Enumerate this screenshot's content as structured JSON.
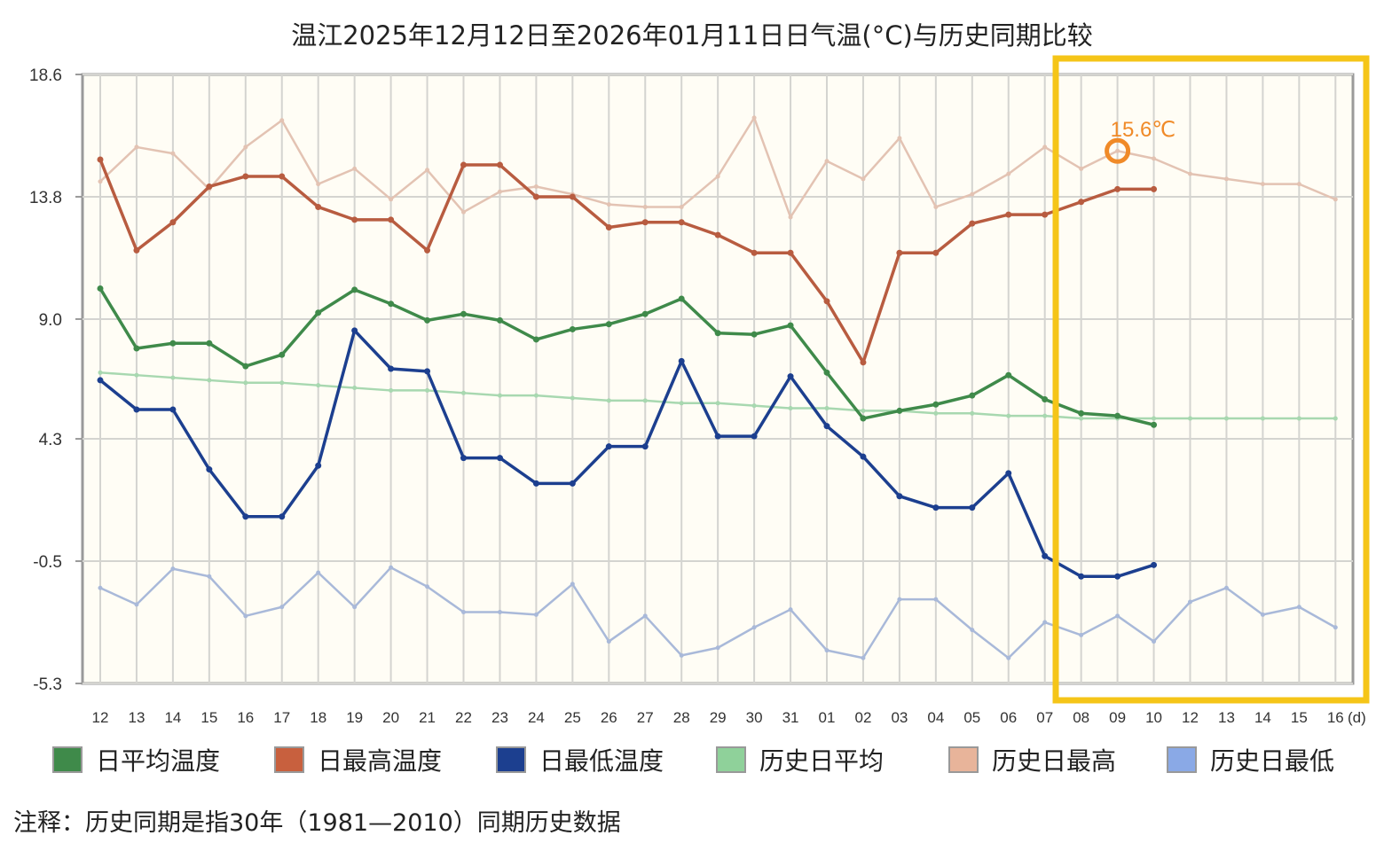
{
  "chart_data": {
    "type": "line",
    "title": "温江2025年12月12日至2026年01月11日日气温(°C)与历史同期比较",
    "xlabel": "(d)",
    "ylabel": "",
    "ylim": [
      -5.3,
      18.6
    ],
    "yticks": [
      "18.6",
      "13.8",
      "9.0",
      "4.3",
      "-0.5",
      "-5.3"
    ],
    "ytick_values": [
      18.6,
      13.8,
      9.0,
      4.3,
      -0.5,
      -5.3
    ],
    "grid": true,
    "categories": [
      "12",
      "13",
      "14",
      "15",
      "16",
      "17",
      "18",
      "19",
      "20",
      "21",
      "22",
      "23",
      "24",
      "25",
      "26",
      "27",
      "28",
      "29",
      "30",
      "31",
      "01",
      "02",
      "03",
      "04",
      "05",
      "06",
      "07",
      "08",
      "09",
      "10",
      "12",
      "13",
      "14",
      "15",
      "16"
    ],
    "series": [
      {
        "name": "日平均温度",
        "color": "#3f8a4a",
        "line_color": "#3f8a4a",
        "values": [
          10.2,
          7.85,
          8.05,
          8.05,
          7.15,
          7.6,
          9.25,
          10.15,
          9.6,
          8.95,
          9.2,
          8.95,
          8.2,
          8.6,
          8.8,
          9.2,
          9.8,
          8.45,
          8.4,
          8.75,
          6.9,
          5.1,
          5.4,
          5.65,
          6.0,
          6.8,
          5.85,
          5.3,
          5.2,
          4.85,
          null,
          null,
          null,
          null,
          null
        ]
      },
      {
        "name": "日最高温度",
        "color": "#c8603e",
        "line_color": "#b85c40",
        "values": [
          15.26,
          11.7,
          12.8,
          14.2,
          14.6,
          14.6,
          13.4,
          12.9,
          12.9,
          11.7,
          15.05,
          15.05,
          13.8,
          13.8,
          12.6,
          12.8,
          12.8,
          12.3,
          11.6,
          11.6,
          9.7,
          7.3,
          11.6,
          11.6,
          12.75,
          13.1,
          13.1,
          13.6,
          14.1,
          14.1,
          null,
          null,
          null,
          null,
          null
        ]
      },
      {
        "name": "日最低温度",
        "color": "#1c3f8f",
        "line_color": "#1c3f8f",
        "values": [
          6.6,
          5.45,
          5.45,
          3.1,
          1.25,
          1.25,
          3.25,
          8.55,
          7.05,
          6.95,
          3.55,
          3.55,
          2.55,
          2.55,
          4.0,
          4.0,
          7.35,
          4.4,
          4.4,
          6.75,
          4.8,
          3.6,
          2.05,
          1.6,
          1.6,
          2.95,
          -0.3,
          -1.1,
          -1.1,
          -0.65,
          null,
          null,
          null,
          null,
          null
        ]
      },
      {
        "name": "历史日平均",
        "color": "#8fd19a",
        "line_color": "#a8d8b0",
        "values": [
          6.9,
          6.8,
          6.7,
          6.6,
          6.5,
          6.5,
          6.4,
          6.3,
          6.2,
          6.2,
          6.1,
          6.0,
          6.0,
          5.9,
          5.8,
          5.8,
          5.7,
          5.7,
          5.6,
          5.5,
          5.5,
          5.4,
          5.4,
          5.3,
          5.3,
          5.2,
          5.2,
          5.1,
          5.1,
          5.1,
          5.1,
          5.1,
          5.1,
          5.1,
          5.1
        ]
      },
      {
        "name": "历史日最高",
        "color": "#e8b49a",
        "line_color": "#e3c3b3",
        "values": [
          14.4,
          15.75,
          15.5,
          14.1,
          15.75,
          16.8,
          14.3,
          14.9,
          13.7,
          14.85,
          13.2,
          14.0,
          14.2,
          13.9,
          13.5,
          13.4,
          13.4,
          14.6,
          16.9,
          13.0,
          15.2,
          14.5,
          16.1,
          13.4,
          13.9,
          14.7,
          15.75,
          14.9,
          15.6,
          15.3,
          14.7,
          14.5,
          14.3,
          14.3,
          13.7
        ]
      },
      {
        "name": "历史日最低",
        "color": "#8aa9e6",
        "line_color": "#a9b9d9",
        "values": [
          -1.55,
          -2.2,
          -0.8,
          -1.1,
          -2.65,
          -2.3,
          -0.95,
          -2.3,
          -0.75,
          -1.5,
          -2.5,
          -2.5,
          -2.6,
          -1.4,
          -3.65,
          -2.65,
          -4.2,
          -3.9,
          -3.1,
          -2.4,
          -4.0,
          -4.3,
          -2.0,
          -2.0,
          -3.2,
          -4.3,
          -2.9,
          -3.4,
          -2.65,
          -3.65,
          -2.1,
          -1.55,
          -2.6,
          -2.3,
          -3.1
        ]
      }
    ],
    "annotation": {
      "text": "15.6℃",
      "category_index": 28,
      "value": 15.6,
      "color": "#f08a28"
    },
    "legend_position": "bottom",
    "highlight_color": "#f5c518",
    "note": "注释：历史同期是指30年（1981—2010）同期历史数据"
  }
}
